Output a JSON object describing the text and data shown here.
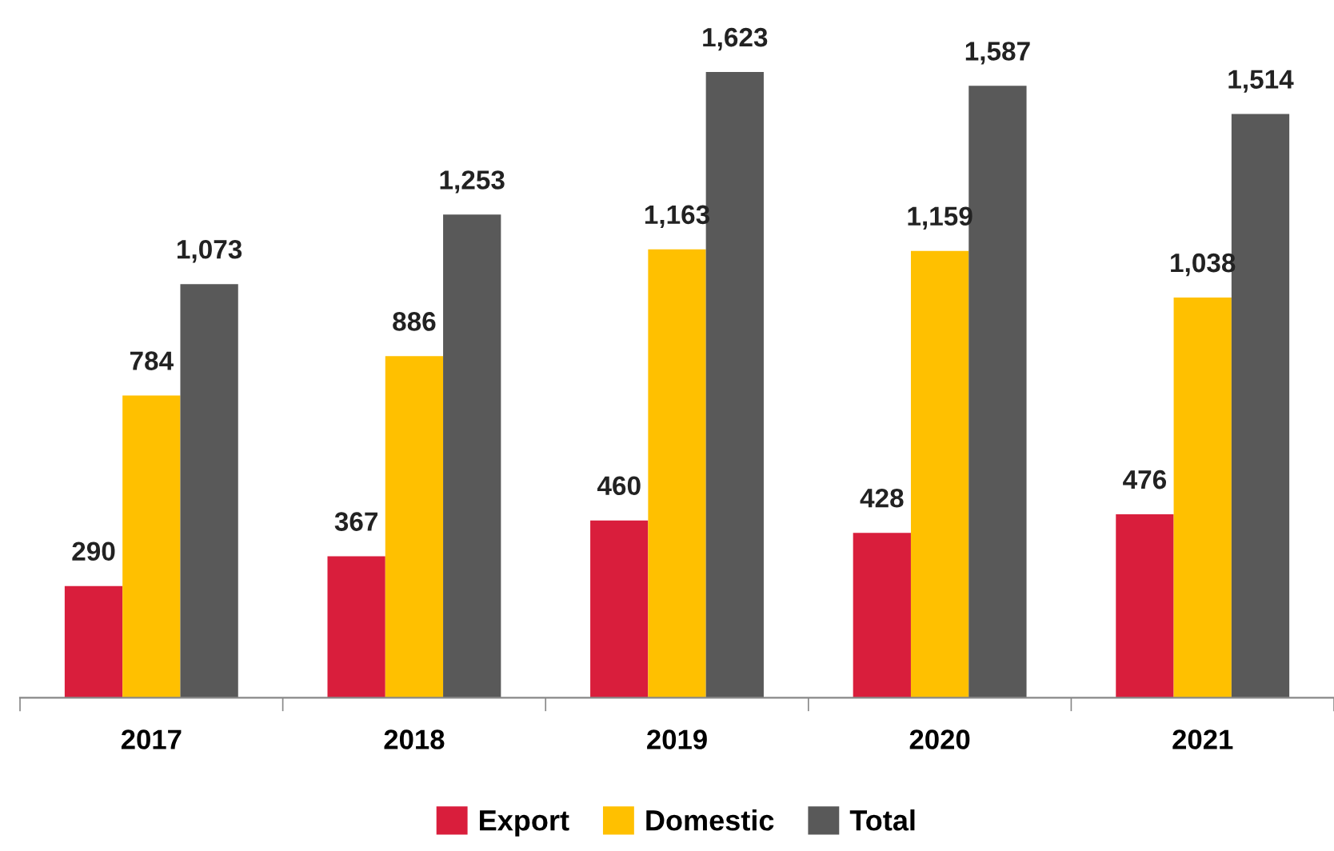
{
  "chart_data": {
    "type": "bar",
    "categories": [
      "2017",
      "2018",
      "2019",
      "2020",
      "2021"
    ],
    "series": [
      {
        "name": "Export",
        "color": "#d91e3c",
        "values": [
          290,
          367,
          460,
          428,
          476
        ],
        "value_labels": [
          "290",
          "367",
          "460",
          "428",
          "476"
        ]
      },
      {
        "name": "Domestic",
        "color": "#ffc000",
        "values": [
          784,
          886,
          1163,
          1159,
          1038
        ],
        "value_labels": [
          "784",
          "886",
          "1,163",
          "1,159",
          "1,038"
        ]
      },
      {
        "name": "Total",
        "color": "#595959",
        "values": [
          1073,
          1253,
          1623,
          1587,
          1514
        ],
        "value_labels": [
          "1,073",
          "1,253",
          "1,623",
          "1,587",
          "1,514"
        ]
      }
    ],
    "grid": false,
    "legend": "bottom"
  }
}
